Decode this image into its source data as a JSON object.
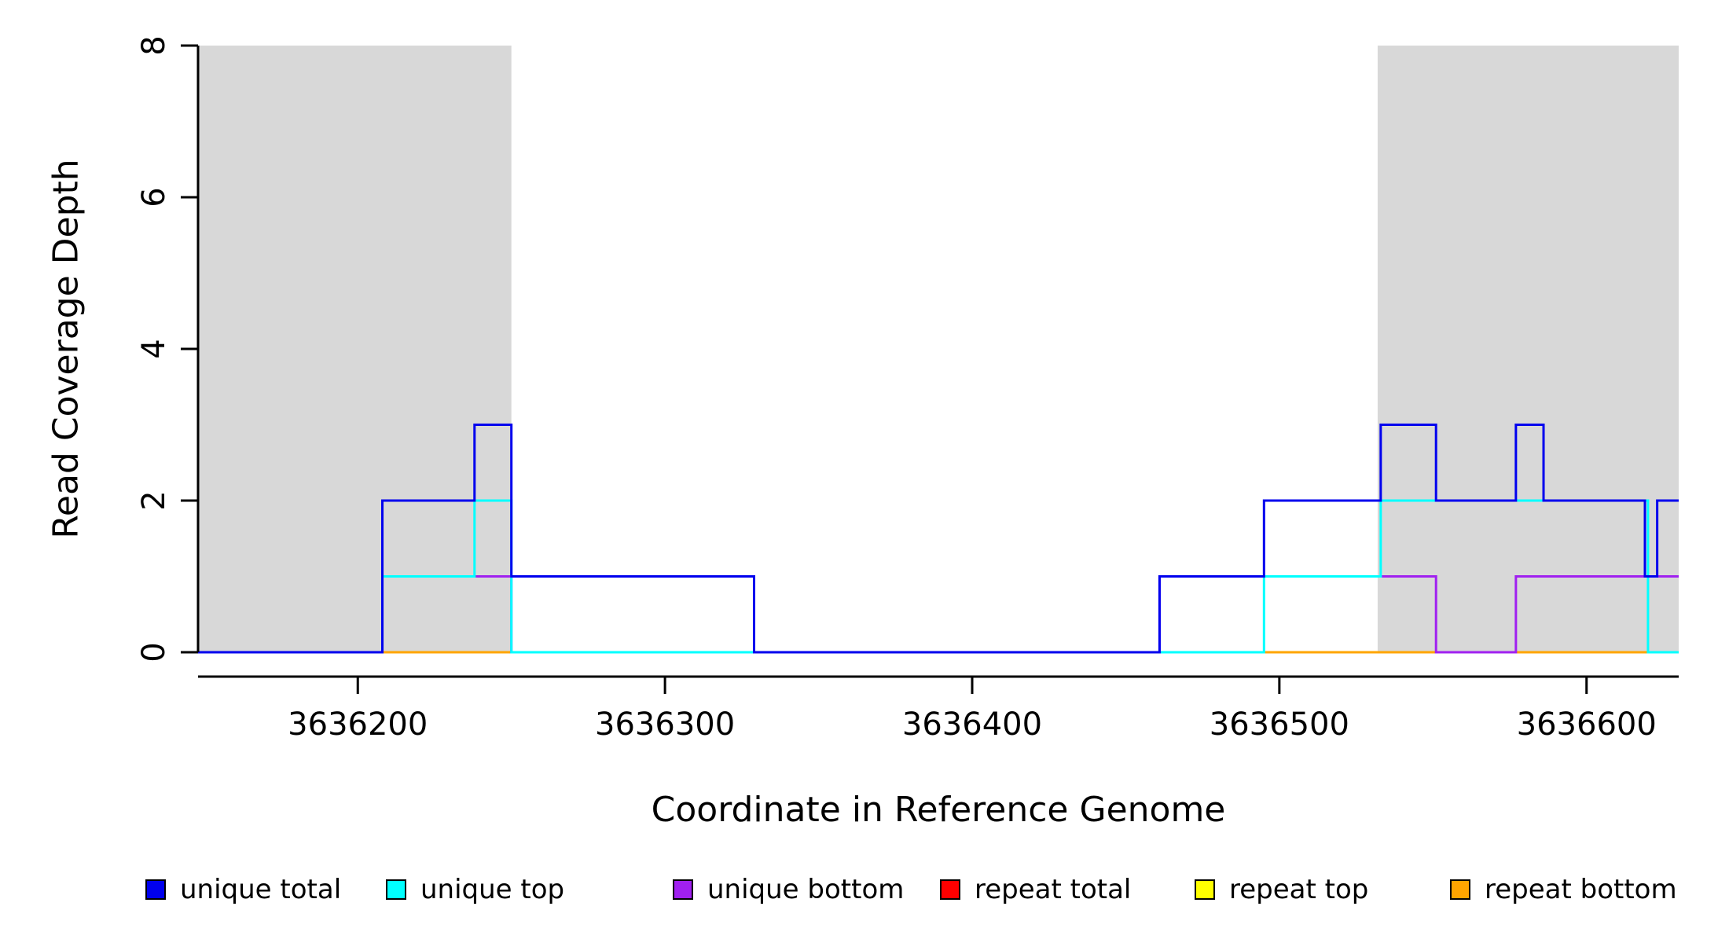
{
  "figure": {
    "background": "#FFFFFF"
  },
  "chart_data": {
    "type": "line",
    "subtype": "step-coverage",
    "title": "",
    "xlabel": "Coordinate in Reference Genome",
    "ylabel": "Read Coverage Depth",
    "xlim": [
      3636148,
      3636630
    ],
    "ylim": [
      0,
      8
    ],
    "x_ticks": [
      3636200,
      3636300,
      3636400,
      3636500,
      3636600
    ],
    "y_ticks": [
      0,
      2,
      4,
      6,
      8
    ],
    "grid": false,
    "shaded_regions": [
      {
        "x0": 3636148,
        "x1": 3636250,
        "color": "#D8D8D8"
      },
      {
        "x0": 3636532,
        "x1": 3636630,
        "color": "#D8D8D8"
      }
    ],
    "series": [
      {
        "name": "repeat total",
        "color": "#FF0000",
        "steps": [
          [
            3636148,
            0
          ],
          [
            3636630,
            0
          ]
        ]
      },
      {
        "name": "repeat top",
        "color": "#FFFF00",
        "steps": [
          [
            3636148,
            0
          ],
          [
            3636630,
            0
          ]
        ]
      },
      {
        "name": "repeat bottom",
        "color": "#FFA500",
        "steps": [
          [
            3636148,
            0
          ],
          [
            3636630,
            0
          ]
        ]
      },
      {
        "name": "unique bottom",
        "color": "#A020F0",
        "steps": [
          [
            3636148,
            0
          ],
          [
            3636208,
            1
          ],
          [
            3636250,
            0
          ],
          [
            3636461,
            1
          ],
          [
            3636551,
            0
          ],
          [
            3636577,
            1
          ],
          [
            3636630,
            1
          ]
        ]
      },
      {
        "name": "unique top",
        "color": "#00FFFF",
        "steps": [
          [
            3636148,
            0
          ],
          [
            3636208,
            1
          ],
          [
            3636238,
            2
          ],
          [
            3636250,
            0
          ],
          [
            3636495,
            1
          ],
          [
            3636533,
            2
          ],
          [
            3636620,
            0
          ],
          [
            3636630,
            0
          ]
        ]
      },
      {
        "name": "unique total",
        "color": "#0000EE",
        "steps": [
          [
            3636148,
            0
          ],
          [
            3636208,
            2
          ],
          [
            3636238,
            3
          ],
          [
            3636250,
            1
          ],
          [
            3636329,
            0
          ],
          [
            3636461,
            1
          ],
          [
            3636495,
            2
          ],
          [
            3636533,
            3
          ],
          [
            3636551,
            2
          ],
          [
            3636577,
            3
          ],
          [
            3636586,
            2
          ],
          [
            3636619,
            1
          ],
          [
            3636623,
            2
          ],
          [
            3636630,
            2
          ]
        ]
      }
    ],
    "legend": {
      "position": "bottom",
      "items": [
        {
          "label": "unique total",
          "color": "#0000EE"
        },
        {
          "label": "unique top",
          "color": "#00FFFF"
        },
        {
          "label": "unique bottom",
          "color": "#A020F0"
        },
        {
          "label": "repeat total",
          "color": "#FF0000"
        },
        {
          "label": "repeat top",
          "color": "#FFFF00"
        },
        {
          "label": "repeat bottom",
          "color": "#FFA500"
        }
      ]
    }
  }
}
